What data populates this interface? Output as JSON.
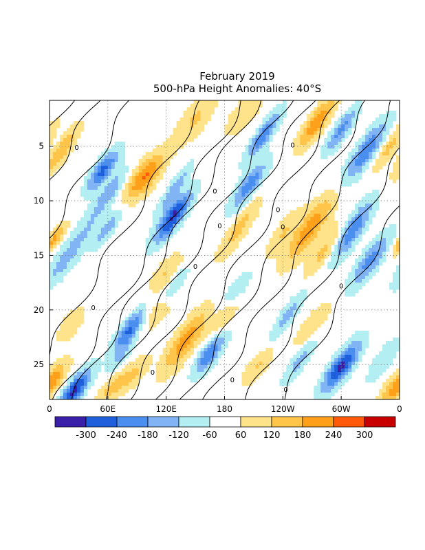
{
  "chart_data": {
    "type": "heatmap",
    "title": "February 2019",
    "subtitle": "500-hPa Height Anomalies: 40°S",
    "x_ticks": [
      "0",
      "60E",
      "120E",
      "180",
      "120W",
      "60W",
      "0"
    ],
    "x_range_deg": [
      0,
      360
    ],
    "y_ticks": [
      "5",
      "10",
      "15",
      "20",
      "25"
    ],
    "y_range_day": [
      0.8,
      28.2
    ],
    "y_reversed": true,
    "grid": true,
    "colorbar": {
      "labels": [
        "-300",
        "-240",
        "-180",
        "-120",
        "-60",
        "60",
        "120",
        "180",
        "240",
        "300"
      ],
      "colors": [
        "#3a1fa8",
        "#1f5fdc",
        "#4a8ef0",
        "#80b4f4",
        "#b2eef2",
        "#ffffff",
        "#ffe38a",
        "#ffc54a",
        "#ffa01a",
        "#ff5a0a",
        "#c80000"
      ]
    },
    "contour_label": "0",
    "features": [
      {
        "lon": 127,
        "day": 11.5,
        "value": -290,
        "w": 7,
        "h": 1.6
      },
      {
        "lon": 128,
        "day": 9.0,
        "value": -140,
        "w": 5,
        "h": 1.6
      },
      {
        "lon": 55,
        "day": 7.2,
        "value": -230,
        "w": 7,
        "h": 1.3
      },
      {
        "lon": 63,
        "day": 9.0,
        "value": -120,
        "w": 6,
        "h": 1.3
      },
      {
        "lon": 35,
        "day": 13.0,
        "value": -90,
        "w": 9,
        "h": 2.5
      },
      {
        "lon": 60,
        "day": 12.5,
        "value": -130,
        "w": 5,
        "h": 1.2
      },
      {
        "lon": 25,
        "day": 27.5,
        "value": -290,
        "w": 7,
        "h": 1.4
      },
      {
        "lon": 83,
        "day": 21.8,
        "value": -230,
        "w": 7,
        "h": 1.4
      },
      {
        "lon": 72,
        "day": 24.5,
        "value": -90,
        "w": 6,
        "h": 1.2
      },
      {
        "lon": 165,
        "day": 24.0,
        "value": -200,
        "w": 7,
        "h": 1.3
      },
      {
        "lon": 128,
        "day": 17.8,
        "value": -110,
        "w": 6,
        "h": 1.2
      },
      {
        "lon": 190,
        "day": 18.5,
        "value": -80,
        "w": 8,
        "h": 1.5
      },
      {
        "lon": 220,
        "day": 4.0,
        "value": -190,
        "w": 6,
        "h": 1.6
      },
      {
        "lon": 205,
        "day": 8.6,
        "value": -190,
        "w": 7,
        "h": 1.6
      },
      {
        "lon": 245,
        "day": 20.5,
        "value": -110,
        "w": 6,
        "h": 1.8
      },
      {
        "lon": 258,
        "day": 24.5,
        "value": -120,
        "w": 6,
        "h": 1.5
      },
      {
        "lon": 300,
        "day": 3.5,
        "value": -170,
        "w": 6,
        "h": 1.5
      },
      {
        "lon": 325,
        "day": 5.5,
        "value": -200,
        "w": 8,
        "h": 2.0
      },
      {
        "lon": 310,
        "day": 12.8,
        "value": -210,
        "w": 8,
        "h": 2.0
      },
      {
        "lon": 330,
        "day": 15.5,
        "value": -170,
        "w": 8,
        "h": 1.8
      },
      {
        "lon": 300,
        "day": 25.2,
        "value": -280,
        "w": 8,
        "h": 1.6
      },
      {
        "lon": 345,
        "day": 24.5,
        "value": -80,
        "w": 8,
        "h": 1.6
      },
      {
        "lon": 10,
        "day": 16.0,
        "value": -70,
        "w": 8,
        "h": 1.5
      },
      {
        "lon": 98,
        "day": 7.8,
        "value": 220,
        "w": 9,
        "h": 1.5
      },
      {
        "lon": 12,
        "day": 5.5,
        "value": 150,
        "w": 6,
        "h": 1.6
      },
      {
        "lon": 5,
        "day": 13.5,
        "value": 170,
        "w": 5,
        "h": 1.0
      },
      {
        "lon": 140,
        "day": 22.8,
        "value": 180,
        "w": 9,
        "h": 2.0
      },
      {
        "lon": 110,
        "day": 20.0,
        "value": 80,
        "w": 10,
        "h": 1.6
      },
      {
        "lon": 150,
        "day": 2.5,
        "value": 100,
        "w": 10,
        "h": 1.6
      },
      {
        "lon": 200,
        "day": 2.0,
        "value": 90,
        "w": 9,
        "h": 1.4
      },
      {
        "lon": 195,
        "day": 12.5,
        "value": 110,
        "w": 7,
        "h": 2.0
      },
      {
        "lon": 240,
        "day": 13.0,
        "value": 90,
        "w": 7,
        "h": 1.6
      },
      {
        "lon": 268,
        "day": 12.5,
        "value": 190,
        "w": 9,
        "h": 2.2
      },
      {
        "lon": 285,
        "day": 14.5,
        "value": 130,
        "w": 8,
        "h": 1.8
      },
      {
        "lon": 275,
        "day": 2.8,
        "value": 200,
        "w": 7,
        "h": 1.6
      },
      {
        "lon": 350,
        "day": 5.0,
        "value": 110,
        "w": 6,
        "h": 1.6
      },
      {
        "lon": 270,
        "day": 21.5,
        "value": 90,
        "w": 8,
        "h": 1.5
      },
      {
        "lon": 180,
        "day": 20.5,
        "value": 110,
        "w": 7,
        "h": 1.2
      },
      {
        "lon": 215,
        "day": 25.0,
        "value": 100,
        "w": 7,
        "h": 1.3
      },
      {
        "lon": 65,
        "day": 27.0,
        "value": 110,
        "w": 8,
        "h": 1.2
      },
      {
        "lon": 5,
        "day": 26.5,
        "value": 100,
        "w": 6,
        "h": 1.2
      },
      {
        "lon": 355,
        "day": 27.0,
        "value": 130,
        "w": 8,
        "h": 1.4
      },
      {
        "lon": 120,
        "day": 16.5,
        "value": 90,
        "w": 8,
        "h": 1.2
      },
      {
        "lon": 20,
        "day": 21.5,
        "value": 80,
        "w": 8,
        "h": 1.2
      },
      {
        "lon": 88,
        "day": 25.8,
        "value": 90,
        "w": 7,
        "h": 1.2
      }
    ]
  }
}
